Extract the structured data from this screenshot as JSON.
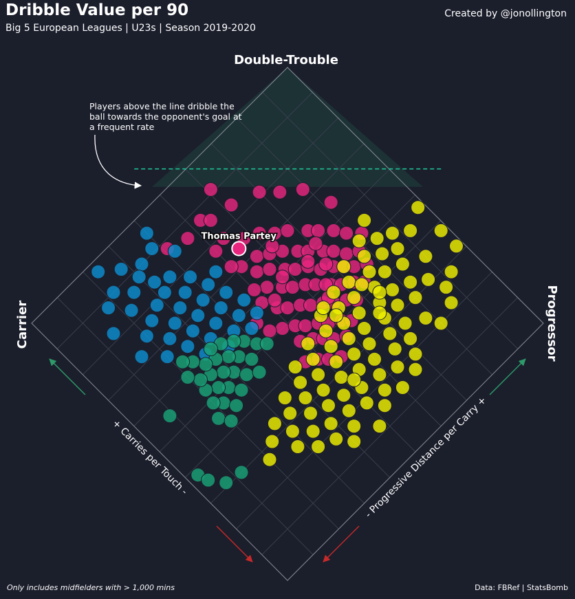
{
  "header": {
    "title": "Dribble Value per 90",
    "subtitle": "Big 5 European Leagues | U23s | Season 2019-2020",
    "credit": "Created by @jonollington"
  },
  "footer": {
    "note": "Only includes midfielders with > 1,000 mins",
    "source": "Data: FBRef | StatsBomb"
  },
  "chart_data": {
    "type": "scatter",
    "title": "Dribble Value per 90",
    "corner_labels": {
      "top": "Double-Trouble",
      "left": "Carrier",
      "right": "Progressor"
    },
    "xlabel": "+ Carries per Touch -",
    "ylabel": "- Progressive Distance per Carry +",
    "annotation": "Players above the line dribble the ball towards the opponent's goal at a frequent rate",
    "highlight": {
      "label": "Thomas Partey",
      "x": 0.74,
      "y": 0.55
    },
    "x_axis_range": [
      0,
      1
    ],
    "y_axis_range": [
      0,
      1
    ],
    "grid": true,
    "colors": {
      "pink": "#e8267f",
      "yellow": "#f0f000",
      "blue": "#0d8ecf",
      "green": "#1aa377",
      "threshold_line": "#1ec99a",
      "arrow_green": "#2e9a6a",
      "arrow_red": "#c42a2a"
    },
    "series": [
      {
        "color": "pink",
        "points": [
          [
            0.88,
            0.41
          ],
          [
            0.86,
            0.47
          ],
          [
            0.87,
            0.53
          ],
          [
            0.85,
            0.55
          ],
          [
            0.91,
            0.61
          ],
          [
            0.84,
            0.62
          ],
          [
            0.81,
            0.7
          ],
          [
            0.77,
            0.74
          ],
          [
            0.73,
            0.79
          ],
          [
            0.65,
            0.82
          ],
          [
            0.78,
            0.5
          ],
          [
            0.79,
            0.54
          ],
          [
            0.75,
            0.58
          ],
          [
            0.73,
            0.62
          ],
          [
            0.7,
            0.65
          ],
          [
            0.68,
            0.68
          ],
          [
            0.64,
            0.72
          ],
          [
            0.62,
            0.74
          ],
          [
            0.59,
            0.77
          ],
          [
            0.56,
            0.79
          ],
          [
            0.53,
            0.82
          ],
          [
            0.69,
            0.57
          ],
          [
            0.67,
            0.6
          ],
          [
            0.65,
            0.63
          ],
          [
            0.62,
            0.66
          ],
          [
            0.6,
            0.68
          ],
          [
            0.57,
            0.71
          ],
          [
            0.55,
            0.73
          ],
          [
            0.52,
            0.75
          ],
          [
            0.5,
            0.78
          ],
          [
            0.66,
            0.54
          ],
          [
            0.64,
            0.57
          ],
          [
            0.61,
            0.6
          ],
          [
            0.59,
            0.62
          ],
          [
            0.57,
            0.65
          ],
          [
            0.54,
            0.67
          ],
          [
            0.52,
            0.7
          ],
          [
            0.5,
            0.72
          ],
          [
            0.48,
            0.74
          ],
          [
            0.46,
            0.77
          ],
          [
            0.61,
            0.53
          ],
          [
            0.58,
            0.56
          ],
          [
            0.56,
            0.58
          ],
          [
            0.54,
            0.61
          ],
          [
            0.52,
            0.63
          ],
          [
            0.49,
            0.66
          ],
          [
            0.47,
            0.68
          ],
          [
            0.45,
            0.71
          ],
          [
            0.43,
            0.73
          ],
          [
            0.55,
            0.51
          ],
          [
            0.53,
            0.53
          ],
          [
            0.51,
            0.56
          ],
          [
            0.49,
            0.58
          ],
          [
            0.47,
            0.61
          ],
          [
            0.45,
            0.63
          ],
          [
            0.43,
            0.66
          ],
          [
            0.41,
            0.68
          ],
          [
            0.5,
            0.48
          ],
          [
            0.48,
            0.51
          ],
          [
            0.46,
            0.53
          ],
          [
            0.44,
            0.56
          ],
          [
            0.42,
            0.58
          ],
          [
            0.4,
            0.61
          ],
          [
            0.38,
            0.63
          ],
          [
            0.44,
            0.49
          ],
          [
            0.42,
            0.52
          ],
          [
            0.4,
            0.54
          ],
          [
            0.38,
            0.56
          ],
          [
            0.36,
            0.59
          ],
          [
            0.39,
            0.46
          ],
          [
            0.37,
            0.49
          ],
          [
            0.35,
            0.51
          ],
          [
            0.33,
            0.54
          ],
          [
            0.59,
            0.49
          ],
          [
            0.63,
            0.5
          ],
          [
            0.7,
            0.52
          ],
          [
            0.72,
            0.5
          ],
          [
            0.56,
            0.44
          ],
          [
            0.52,
            0.45
          ],
          [
            0.6,
            0.58
          ],
          [
            0.68,
            0.62
          ],
          [
            0.6,
            0.71
          ],
          [
            0.58,
            0.66
          ],
          [
            0.54,
            0.69
          ],
          [
            0.5,
            0.65
          ],
          [
            0.47,
            0.63
          ],
          [
            0.57,
            0.52
          ]
        ]
      },
      {
        "color": "yellow",
        "points": [
          [
            0.47,
            0.98
          ],
          [
            0.38,
            0.98
          ],
          [
            0.32,
            0.98
          ],
          [
            0.28,
            0.92
          ],
          [
            0.36,
            0.9
          ],
          [
            0.31,
            0.86
          ],
          [
            0.26,
            0.88
          ],
          [
            0.22,
            0.86
          ],
          [
            0.2,
            0.8
          ],
          [
            0.24,
            0.78
          ],
          [
            0.3,
            0.8
          ],
          [
            0.34,
            0.82
          ],
          [
            0.39,
            0.84
          ],
          [
            0.43,
            0.86
          ],
          [
            0.47,
            0.88
          ],
          [
            0.45,
            0.82
          ],
          [
            0.41,
            0.79
          ],
          [
            0.36,
            0.77
          ],
          [
            0.32,
            0.75
          ],
          [
            0.27,
            0.73
          ],
          [
            0.23,
            0.71
          ],
          [
            0.19,
            0.69
          ],
          [
            0.16,
            0.66
          ],
          [
            0.2,
            0.63
          ],
          [
            0.24,
            0.66
          ],
          [
            0.28,
            0.68
          ],
          [
            0.32,
            0.7
          ],
          [
            0.36,
            0.72
          ],
          [
            0.4,
            0.74
          ],
          [
            0.44,
            0.76
          ],
          [
            0.48,
            0.78
          ],
          [
            0.5,
            0.72
          ],
          [
            0.46,
            0.7
          ],
          [
            0.42,
            0.68
          ],
          [
            0.38,
            0.66
          ],
          [
            0.34,
            0.64
          ],
          [
            0.3,
            0.62
          ],
          [
            0.26,
            0.6
          ],
          [
            0.22,
            0.58
          ],
          [
            0.18,
            0.56
          ],
          [
            0.15,
            0.53
          ],
          [
            0.19,
            0.5
          ],
          [
            0.23,
            0.52
          ],
          [
            0.27,
            0.55
          ],
          [
            0.31,
            0.57
          ],
          [
            0.35,
            0.59
          ],
          [
            0.39,
            0.61
          ],
          [
            0.43,
            0.63
          ],
          [
            0.47,
            0.65
          ],
          [
            0.45,
            0.58
          ],
          [
            0.41,
            0.56
          ],
          [
            0.37,
            0.54
          ],
          [
            0.33,
            0.52
          ],
          [
            0.29,
            0.5
          ],
          [
            0.25,
            0.47
          ],
          [
            0.21,
            0.45
          ],
          [
            0.17,
            0.43
          ],
          [
            0.14,
            0.4
          ],
          [
            0.18,
            0.37
          ],
          [
            0.22,
            0.39
          ],
          [
            0.26,
            0.42
          ],
          [
            0.3,
            0.44
          ],
          [
            0.34,
            0.46
          ],
          [
            0.38,
            0.48
          ],
          [
            0.42,
            0.5
          ],
          [
            0.4,
            0.43
          ],
          [
            0.36,
            0.41
          ],
          [
            0.32,
            0.39
          ],
          [
            0.28,
            0.37
          ],
          [
            0.24,
            0.34
          ],
          [
            0.2,
            0.32
          ],
          [
            0.24,
            0.28
          ],
          [
            0.28,
            0.3
          ],
          [
            0.32,
            0.33
          ],
          [
            0.36,
            0.35
          ],
          [
            0.3,
            0.24
          ],
          [
            0.27,
            0.2
          ],
          [
            0.33,
            0.28
          ],
          [
            0.15,
            0.6
          ],
          [
            0.12,
            0.48
          ],
          [
            0.43,
            0.72
          ],
          [
            0.49,
            0.84
          ],
          [
            0.52,
            0.8
          ],
          [
            0.55,
            0.85
          ],
          [
            0.44,
            0.92
          ],
          [
            0.26,
            0.52
          ],
          [
            0.34,
            0.7
          ],
          [
            0.38,
            0.74
          ],
          [
            0.42,
            0.61
          ],
          [
            0.46,
            0.6
          ]
        ]
      },
      {
        "color": "blue",
        "points": [
          [
            0.91,
            0.38
          ],
          [
            0.9,
            0.33
          ],
          [
            0.88,
            0.3
          ],
          [
            0.86,
            0.26
          ],
          [
            0.83,
            0.22
          ],
          [
            0.82,
            0.36
          ],
          [
            0.8,
            0.32
          ],
          [
            0.79,
            0.28
          ],
          [
            0.77,
            0.24
          ],
          [
            0.75,
            0.2
          ],
          [
            0.78,
            0.4
          ],
          [
            0.76,
            0.36
          ],
          [
            0.74,
            0.32
          ],
          [
            0.72,
            0.28
          ],
          [
            0.7,
            0.24
          ],
          [
            0.73,
            0.42
          ],
          [
            0.71,
            0.38
          ],
          [
            0.69,
            0.34
          ],
          [
            0.67,
            0.3
          ],
          [
            0.65,
            0.26
          ],
          [
            0.68,
            0.44
          ],
          [
            0.66,
            0.4
          ],
          [
            0.64,
            0.36
          ],
          [
            0.62,
            0.32
          ],
          [
            0.6,
            0.28
          ],
          [
            0.63,
            0.46
          ],
          [
            0.61,
            0.42
          ],
          [
            0.59,
            0.38
          ],
          [
            0.57,
            0.34
          ],
          [
            0.58,
            0.46
          ],
          [
            0.56,
            0.42
          ],
          [
            0.67,
            0.2
          ],
          [
            0.72,
            0.15
          ],
          [
            0.97,
            0.23
          ],
          [
            0.95,
            0.4
          ],
          [
            0.82,
            0.14
          ],
          [
            0.88,
            0.18
          ],
          [
            0.74,
            0.46
          ],
          [
            0.86,
            0.42
          ],
          [
            0.93,
            0.28
          ],
          [
            0.9,
            0.22
          ],
          [
            0.84,
            0.32
          ]
        ]
      },
      {
        "color": "green",
        "points": [
          [
            0.55,
            0.38
          ],
          [
            0.53,
            0.34
          ],
          [
            0.51,
            0.3
          ],
          [
            0.49,
            0.26
          ],
          [
            0.47,
            0.22
          ],
          [
            0.45,
            0.18
          ],
          [
            0.52,
            0.4
          ],
          [
            0.5,
            0.36
          ],
          [
            0.48,
            0.32
          ],
          [
            0.46,
            0.28
          ],
          [
            0.44,
            0.24
          ],
          [
            0.42,
            0.2
          ],
          [
            0.57,
            0.36
          ],
          [
            0.55,
            0.32
          ],
          [
            0.53,
            0.28
          ],
          [
            0.51,
            0.24
          ],
          [
            0.49,
            0.2
          ],
          [
            0.59,
            0.33
          ],
          [
            0.57,
            0.29
          ],
          [
            0.55,
            0.25
          ],
          [
            0.53,
            0.21
          ],
          [
            0.6,
            0.3
          ],
          [
            0.58,
            0.26
          ],
          [
            0.56,
            0.22
          ],
          [
            0.61,
            0.24
          ],
          [
            0.59,
            0.2
          ],
          [
            0.5,
            0.42
          ],
          [
            0.38,
            0.03
          ],
          [
            0.35,
            0.04
          ],
          [
            0.31,
            0.07
          ],
          [
            0.3,
            0.12
          ],
          [
            0.55,
            0.09
          ],
          [
            0.63,
            0.22
          ],
          [
            0.46,
            0.35
          ]
        ]
      }
    ]
  }
}
